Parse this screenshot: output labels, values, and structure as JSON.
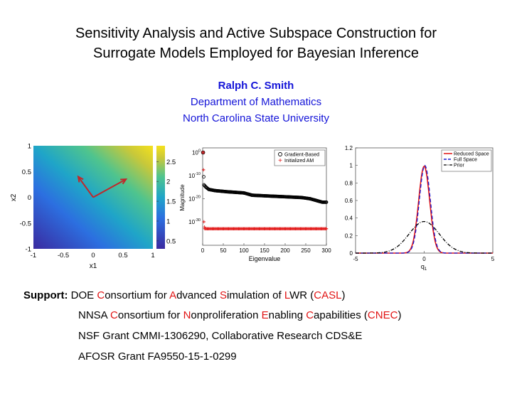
{
  "title_line1": "Sensitivity Analysis and Active Subspace Construction for",
  "title_line2": "Surrogate Models Employed for Bayesian Inference",
  "author": "Ralph C. Smith",
  "department": "Department of Mathematics",
  "university": "North Carolina State University",
  "support": {
    "label": "Support:",
    "line1": [
      {
        "t": "DOE ",
        "c": "k"
      },
      {
        "t": "C",
        "c": "r"
      },
      {
        "t": "onsortium for ",
        "c": "k"
      },
      {
        "t": "A",
        "c": "r"
      },
      {
        "t": "dvanced ",
        "c": "k"
      },
      {
        "t": "S",
        "c": "r"
      },
      {
        "t": "imulation of ",
        "c": "k"
      },
      {
        "t": "L",
        "c": "r"
      },
      {
        "t": "WR (",
        "c": "k"
      },
      {
        "t": "CASL",
        "c": "r"
      },
      {
        "t": ")",
        "c": "k"
      }
    ],
    "line2": [
      {
        "t": "NNSA ",
        "c": "k"
      },
      {
        "t": "C",
        "c": "r"
      },
      {
        "t": "onsortium for ",
        "c": "k"
      },
      {
        "t": "N",
        "c": "r"
      },
      {
        "t": "onproliferation ",
        "c": "k"
      },
      {
        "t": "E",
        "c": "r"
      },
      {
        "t": "nabling ",
        "c": "k"
      },
      {
        "t": "C",
        "c": "r"
      },
      {
        "t": "apabilities (",
        "c": "k"
      },
      {
        "t": "CNEC",
        "c": "r"
      },
      {
        "t": ")",
        "c": "k"
      }
    ],
    "line3": "NSF Grant CMMI-1306290, Collaborative Research CDS&E",
    "line4": "AFOSR Grant FA9550-15-1-0299"
  },
  "colors": {
    "blue_text": "#1414d8",
    "red_text": "#e11414",
    "arrow": "#c0282a"
  },
  "chart_data": [
    {
      "type": "heatmap",
      "xlabel": "x1",
      "ylabel": "x2",
      "xlim": [
        -1,
        1
      ],
      "ylim": [
        -1,
        1
      ],
      "xticks": [
        "-1",
        "-0.5",
        "0",
        "0.5",
        "1"
      ],
      "yticks": [
        "1",
        "0.5",
        "0",
        "-0.5",
        "-1"
      ],
      "colorbar_ticks": [
        "2.5",
        "2",
        "1.5",
        "1",
        "0.5"
      ],
      "colorbar_range": [
        0.3,
        2.9
      ],
      "arrows": [
        {
          "from": [
            0,
            0
          ],
          "to": [
            -0.25,
            0.4
          ]
        },
        {
          "from": [
            0,
            0
          ],
          "to": [
            0.55,
            0.35
          ]
        }
      ]
    },
    {
      "type": "scatter",
      "xlabel": "Eigenvalue",
      "ylabel": "Magnitude",
      "log_y": true,
      "xlim": [
        0,
        300
      ],
      "xticks": [
        "0",
        "50",
        "100",
        "150",
        "200",
        "250",
        "300"
      ],
      "yticks": [
        {
          "base": "10",
          "exp": "0"
        },
        {
          "base": "10",
          "exp": "-10"
        },
        {
          "base": "10",
          "exp": "-20"
        },
        {
          "base": "10",
          "exp": "-30"
        }
      ],
      "legend": [
        "Gradient-Based",
        "Initialized AM"
      ],
      "legend_position": "top-right",
      "series": [
        {
          "name": "Gradient-Based",
          "marker": "circle",
          "color": "#000000",
          "points": [
            [
              1,
              0
            ],
            [
              3,
              -14
            ],
            [
              8,
              -15
            ],
            [
              15,
              -16
            ],
            [
              30,
              -16.5
            ],
            [
              60,
              -17
            ],
            [
              100,
              -17.5
            ],
            [
              120,
              -18.5
            ],
            [
              180,
              -19
            ],
            [
              240,
              -19.5
            ],
            [
              260,
              -20
            ],
            [
              290,
              -21.5
            ],
            [
              300,
              -21.5
            ]
          ]
        },
        {
          "name": "Initialized AM",
          "marker": "plus",
          "color": "#e11414",
          "points": [
            [
              1,
              0
            ],
            [
              2,
              -7.5
            ],
            [
              3,
              -30
            ],
            [
              5,
              -33
            ],
            [
              300,
              -33
            ]
          ]
        }
      ]
    },
    {
      "type": "line",
      "xlabel": "q1",
      "xlim": [
        -5,
        5
      ],
      "ylim": [
        0,
        1.2
      ],
      "xticks": [
        "-5",
        "0",
        "5"
      ],
      "yticks": [
        "1.2",
        "1",
        "0.8",
        "0.6",
        "0.4",
        "0.2",
        "0"
      ],
      "legend": [
        "Reduced Space",
        "Full Space",
        "Prior"
      ],
      "legend_position": "top-right",
      "series": [
        {
          "name": "Reduced Space",
          "color": "#e11414",
          "style": "solid",
          "mean": 0,
          "sd": 0.4,
          "peak": 0.99
        },
        {
          "name": "Full Space",
          "color": "#1a1ad0",
          "style": "dashed",
          "mean": 0.05,
          "sd": 0.4,
          "peak": 1.0
        },
        {
          "name": "Prior",
          "color": "#000000",
          "style": "dashdot",
          "mean": 0,
          "sd": 1.1,
          "peak": 0.36
        }
      ]
    }
  ]
}
